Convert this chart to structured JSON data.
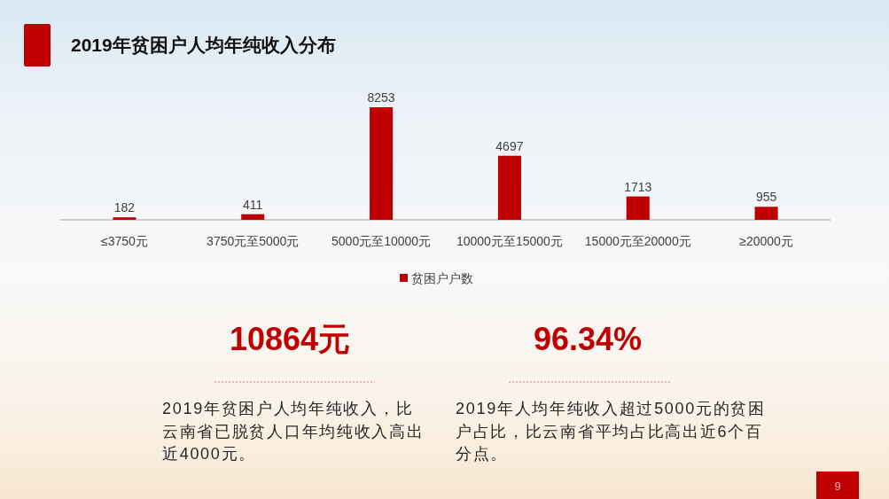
{
  "chart_data": {
    "type": "bar",
    "title": "2019年贫困户人均年纯收入分布",
    "categories": [
      "≤3750元",
      "3750元至5000元",
      "5000元至10000元",
      "10000元至15000元",
      "15000元至20000元",
      "≥20000元"
    ],
    "series": [
      {
        "name": "贫困户户数",
        "color": "#c00000",
        "values": [
          182,
          411,
          8253,
          4697,
          1713,
          955
        ]
      }
    ],
    "data_labels": true,
    "legend": "bottom",
    "annotations": [
      "10864元",
      "96.34%",
      "2019年贫困户人均年纯收入，比云南省已脱贫人口年均纯收入高出近4000元。",
      "2019年人均年纯收入超过5000元的贫困户占比，比云南省平均占比高出近6个百分点。",
      "9"
    ]
  }
}
